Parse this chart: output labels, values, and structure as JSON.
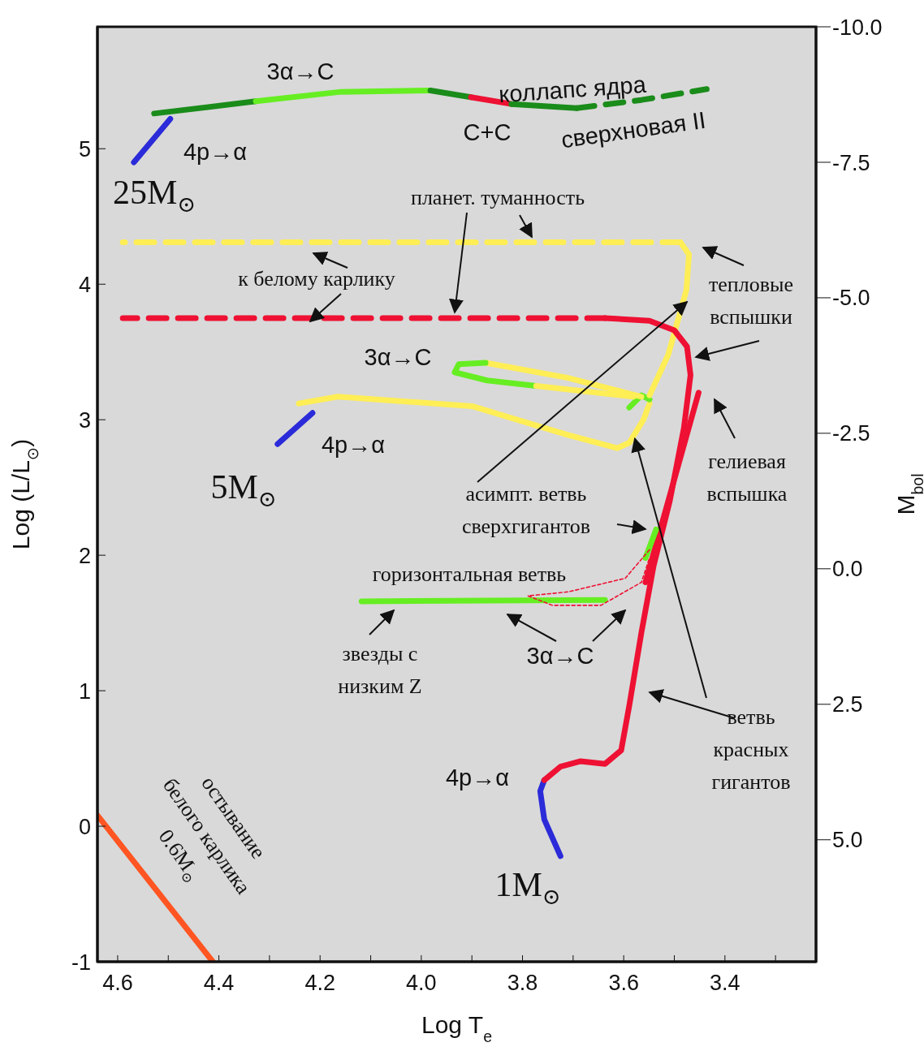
{
  "chart_data": {
    "type": "line",
    "xlabel": "Log T$_{e}$",
    "ylabel": "Log (L/L$_{⊙}$)",
    "y2label": "M$_{bol}$",
    "xlim": [
      4.64,
      3.22
    ],
    "ylim": [
      -1,
      5.9
    ],
    "y2lim": [
      7.25,
      -10
    ],
    "xticks": [
      4.6,
      {
        "value": 4.5,
        "label": null
      },
      4.4,
      {
        "value": 4.3,
        "label": null
      },
      4.2,
      {
        "value": 4.1,
        "label": null
      },
      {
        "value": 4,
        "label": "4.0"
      },
      {
        "value": 3.9,
        "label": null
      },
      3.8,
      {
        "value": 3.7,
        "label": null
      },
      3.6,
      {
        "value": 3.5,
        "label": null
      },
      3.4,
      {
        "value": 3.3,
        "label": null
      }
    ],
    "yticks": [
      -1,
      0,
      1,
      2,
      3,
      4,
      5
    ],
    "y2ticks": [
      {
        "value": -10,
        "label": "-10.0"
      },
      -7.5,
      {
        "value": -5,
        "label": "-5.0"
      },
      -2.5,
      {
        "value": 0,
        "label": "0.0"
      },
      2.5,
      {
        "value": 5,
        "label": "5.0"
      }
    ],
    "marker": "none",
    "series": [
      {
        "color": "#2b2bd9",
        "x": [
          4.568,
          4.496
        ],
        "values": [
          4.9,
          5.22
        ]
      },
      {
        "color": "#1a8c1a",
        "x": [
          4.528,
          4.327
        ],
        "values": [
          5.26,
          5.35
        ]
      },
      {
        "color": "#66ee22",
        "x": [
          4.327,
          4.159,
          3.982
        ],
        "values": [
          5.35,
          5.42,
          5.43
        ]
      },
      {
        "color": "#1a8c1a",
        "x": [
          3.982,
          3.902
        ],
        "values": [
          5.43,
          5.38
        ]
      },
      {
        "color": "#ee1133",
        "x": [
          3.902,
          3.822
        ],
        "values": [
          5.38,
          5.33
        ]
      },
      {
        "color": "#1a8c1a",
        "x": [
          3.822,
          3.693
        ],
        "values": [
          5.33,
          5.3
        ]
      },
      {
        "color": "#1a8c1a",
        "line_style": "dashed",
        "x": [
          3.693,
          3.565,
          3.436
        ],
        "values": [
          5.3,
          5.36,
          5.44
        ]
      },
      {
        "color": "#2b2bd9",
        "x": [
          4.284,
          4.215
        ],
        "values": [
          2.82,
          3.05
        ]
      },
      {
        "color": "#ffee55",
        "x": [
          4.242,
          4.165,
          3.9,
          3.712,
          3.613,
          3.589,
          3.561,
          3.549
        ],
        "values": [
          3.12,
          3.17,
          3.1,
          2.89,
          2.79,
          2.83,
          3.0,
          3.12
        ]
      },
      {
        "color": "#66ee22",
        "x": [
          3.589,
          3.565,
          3.549
        ],
        "values": [
          3.09,
          3.18,
          3.15
        ]
      },
      {
        "color": "#ffee55",
        "x": [
          3.565,
          3.712,
          3.873
        ],
        "values": [
          3.17,
          3.31,
          3.42
        ]
      },
      {
        "color": "#66ee22",
        "x": [
          3.873,
          3.926,
          3.934,
          3.87,
          3.773
        ],
        "values": [
          3.42,
          3.41,
          3.35,
          3.29,
          3.25
        ]
      },
      {
        "color": "#ffee55",
        "x": [
          3.773,
          3.581
        ],
        "values": [
          3.25,
          3.17
        ]
      },
      {
        "color": "#ffee55",
        "x": [
          3.549,
          3.512,
          3.476,
          3.471,
          3.488
        ],
        "values": [
          3.18,
          3.48,
          3.96,
          4.22,
          4.31
        ]
      },
      {
        "color": "#ffee55",
        "line_style": "dashed",
        "x": [
          3.488,
          4.59
        ],
        "values": [
          4.31,
          4.31
        ]
      },
      {
        "color": "#2b2bd9",
        "x": [
          3.725,
          3.757,
          3.765,
          3.757
        ],
        "values": [
          -0.22,
          0.05,
          0.26,
          0.34
        ]
      },
      {
        "color": "#ee1133",
        "x": [
          3.757,
          3.725,
          3.685,
          3.637,
          3.605,
          3.589,
          3.565,
          3.541,
          3.509,
          3.481,
          3.468,
          3.475,
          3.5,
          3.549,
          3.637
        ],
        "values": [
          0.34,
          0.44,
          0.48,
          0.46,
          0.56,
          0.89,
          1.43,
          1.92,
          2.4,
          2.94,
          3.33,
          3.54,
          3.66,
          3.73,
          3.75
        ]
      },
      {
        "color": "#ee1133",
        "line_style": "dashed",
        "x": [
          3.637,
          4.59
        ],
        "values": [
          3.75,
          3.75
        ]
      },
      {
        "color": "#ee1133",
        "x": [
          3.452,
          3.557
        ],
        "values": [
          3.2,
          1.8
        ]
      },
      {
        "color": "#66ee22",
        "x": [
          3.536,
          3.557
        ],
        "values": [
          2.19,
          1.98
        ]
      },
      {
        "color": "#66ee22",
        "x": [
          4.118,
          3.637
        ],
        "values": [
          1.66,
          1.67
        ]
      },
      {
        "color": "#ee1133",
        "line_style": "dotted",
        "x": [
          3.549,
          3.597,
          3.709,
          3.789,
          3.741,
          3.645,
          3.565,
          3.549
        ],
        "values": [
          2.04,
          1.83,
          1.73,
          1.7,
          1.63,
          1.63,
          1.8,
          1.98
        ]
      },
      {
        "color": "#ff5522",
        "x": [
          4.64,
          4.412
        ],
        "values": [
          0.08,
          -1.0
        ]
      }
    ],
    "annotations": [
      "3α→C",
      "4p→α",
      "25M$_{⊙}$",
      "коллапс ядра",
      "C+C",
      "сверхновая II",
      "планет. туманность",
      "к белому карлику",
      "тепловые\nвспышки",
      "3α→C",
      "4p→α",
      "5M$_{⊙}$",
      "гелиевая\nвспышка",
      {
        "text": "асимпт. ветвь\nсверхгигантов",
        "x": 3.475,
        "y": 3.87
      },
      "горизонтальная ветвь",
      "звезды с\nнизким Z",
      "3α→C",
      {
        "text": "ветвь\nкрасных\nгигантов",
        "x": 3.578,
        "y": 2.86
      },
      "4p→α",
      "1M$_{⊙}$",
      "остывание\nбелого карлика\n0.6M$_{⊙}$"
    ]
  }
}
